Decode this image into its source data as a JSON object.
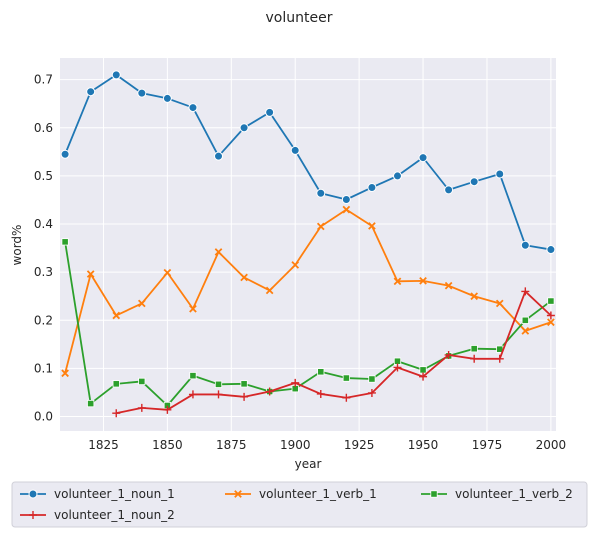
{
  "chart_data": {
    "type": "line",
    "title": "volunteer",
    "xlabel": "year",
    "ylabel": "word%",
    "xlim": [
      1808,
      2002
    ],
    "ylim": [
      -0.03,
      0.745
    ],
    "x_ticks": [
      1825,
      1850,
      1875,
      1900,
      1925,
      1950,
      1975,
      2000
    ],
    "y_ticks": [
      0.0,
      0.1,
      0.2,
      0.3,
      0.4,
      0.5,
      0.6,
      0.7
    ],
    "grid": true,
    "legend_position": "bottom",
    "series": [
      {
        "name": "volunteer_1_noun_1",
        "color": "#1f77b4",
        "marker": "circle",
        "x": [
          1810,
          1820,
          1830,
          1840,
          1850,
          1860,
          1870,
          1880,
          1890,
          1900,
          1910,
          1920,
          1930,
          1940,
          1950,
          1960,
          1970,
          1980,
          1990,
          2000
        ],
        "values": [
          0.545,
          0.675,
          0.71,
          0.672,
          0.661,
          0.642,
          0.541,
          0.6,
          0.632,
          0.553,
          0.464,
          0.451,
          0.476,
          0.5,
          0.538,
          0.471,
          0.488,
          0.504,
          0.356,
          0.347
        ]
      },
      {
        "name": "volunteer_1_verb_1",
        "color": "#ff7f0e",
        "marker": "x",
        "x": [
          1810,
          1820,
          1830,
          1840,
          1850,
          1860,
          1870,
          1880,
          1890,
          1900,
          1910,
          1920,
          1930,
          1940,
          1950,
          1960,
          1970,
          1980,
          1990,
          2000
        ],
        "values": [
          0.09,
          0.296,
          0.21,
          0.235,
          0.299,
          0.224,
          0.342,
          0.289,
          0.262,
          0.315,
          0.395,
          0.43,
          0.396,
          0.281,
          0.282,
          0.272,
          0.25,
          0.235,
          0.178,
          0.196
        ]
      },
      {
        "name": "volunteer_1_verb_2",
        "color": "#2ca02c",
        "marker": "square",
        "x": [
          1810,
          1820,
          1830,
          1840,
          1850,
          1860,
          1870,
          1880,
          1890,
          1900,
          1910,
          1920,
          1930,
          1940,
          1950,
          1960,
          1970,
          1980,
          1990,
          2000
        ],
        "values": [
          0.363,
          0.027,
          0.068,
          0.073,
          0.023,
          0.085,
          0.067,
          0.068,
          0.052,
          0.058,
          0.093,
          0.08,
          0.078,
          0.115,
          0.097,
          0.126,
          0.141,
          0.14,
          0.2,
          0.24
        ]
      },
      {
        "name": "volunteer_1_noun_2",
        "color": "#d62728",
        "marker": "plus",
        "x": [
          1830,
          1840,
          1850,
          1860,
          1870,
          1880,
          1890,
          1900,
          1910,
          1920,
          1930,
          1940,
          1950,
          1960,
          1970,
          1980,
          1990,
          2000
        ],
        "values": [
          0.007,
          0.018,
          0.014,
          0.046,
          0.046,
          0.041,
          0.052,
          0.07,
          0.047,
          0.039,
          0.049,
          0.102,
          0.083,
          0.128,
          0.12,
          0.12,
          0.26,
          0.21
        ]
      }
    ]
  }
}
